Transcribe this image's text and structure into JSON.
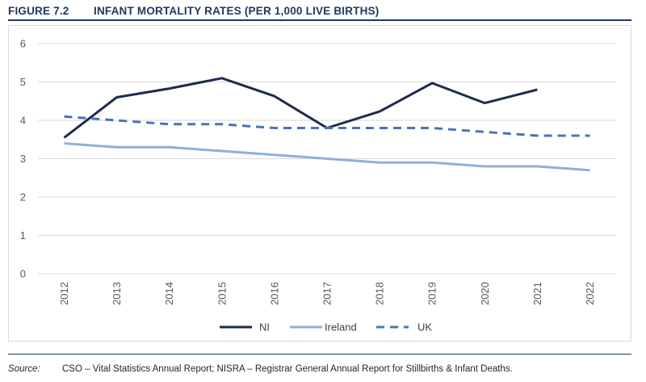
{
  "figure": {
    "number": "FIGURE 7.2",
    "title": "INFANT MORTALITY RATES (PER 1,000 LIVE BIRTHS)"
  },
  "source": {
    "label": "Source:",
    "text": "CSO – Vital Statistics Annual Report; NISRA – Registrar General Annual Report for Stillbirths & Infant Deaths."
  },
  "chart_data": {
    "type": "line",
    "title": "INFANT MORTALITY RATES (PER 1,000 LIVE BIRTHS)",
    "xlabel": "",
    "ylabel": "",
    "x": [
      "2012",
      "2013",
      "2014",
      "2015",
      "2016",
      "2017",
      "2018",
      "2019",
      "2020",
      "2021",
      "2022"
    ],
    "ylim": [
      0,
      6
    ],
    "yticks": [
      0,
      1,
      2,
      3,
      4,
      5,
      6
    ],
    "grid": true,
    "legend_position": "bottom",
    "series": [
      {
        "name": "NI",
        "color": "#1f2a4f",
        "dash": "solid",
        "values": [
          3.55,
          4.6,
          4.83,
          5.1,
          4.63,
          3.8,
          4.23,
          4.97,
          4.45,
          4.8,
          null
        ]
      },
      {
        "name": "Ireland",
        "color": "#8eb0db",
        "dash": "solid",
        "values": [
          3.4,
          3.3,
          3.3,
          3.2,
          3.1,
          3.0,
          2.9,
          2.9,
          2.8,
          2.8,
          2.7
        ]
      },
      {
        "name": "UK",
        "color": "#4a74b4",
        "dash": "dashed",
        "values": [
          4.1,
          4.0,
          3.9,
          3.9,
          3.8,
          3.8,
          3.8,
          3.8,
          3.7,
          3.6,
          3.6
        ]
      }
    ]
  }
}
